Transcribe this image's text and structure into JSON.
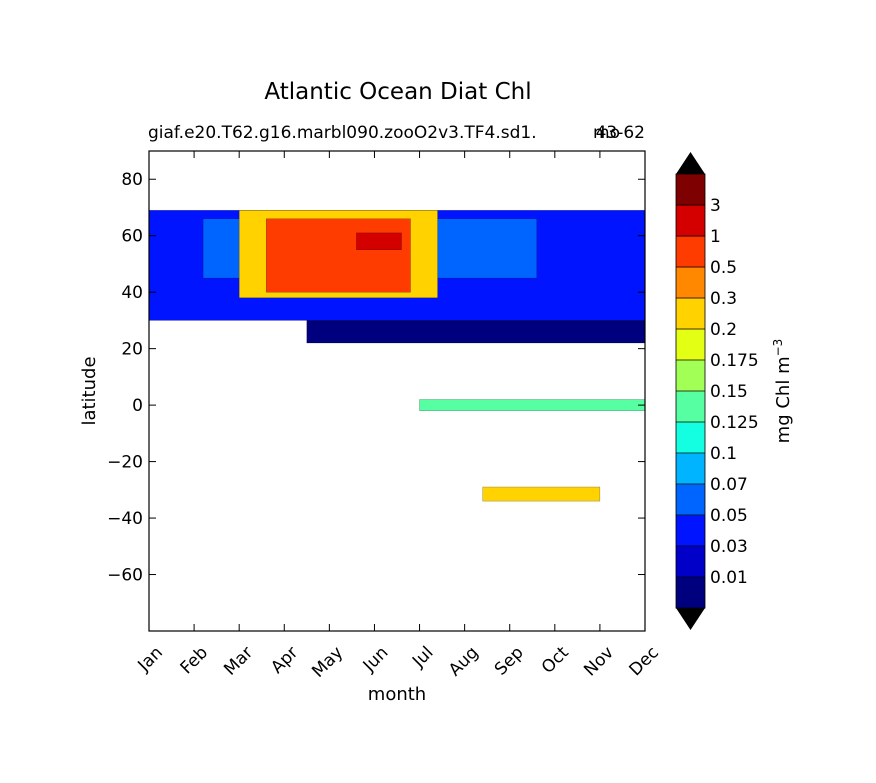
{
  "title": "Atlantic Ocean Diat Chl",
  "subtitle_left": "giaf.e20.T62.g16.marbl090.zooO2v3.TF4.sd1.",
  "subtitle_right": "43-62",
  "subtitle_overlap": "mo",
  "chart_data": {
    "type": "heatmap",
    "xlabel": "month",
    "ylabel": "latitude",
    "x": [
      "Jan",
      "Feb",
      "Mar",
      "Apr",
      "May",
      "Jun",
      "Jul",
      "Aug",
      "Sep",
      "Oct",
      "Nov",
      "Dec"
    ],
    "yticks": [
      80,
      60,
      40,
      20,
      0,
      -20,
      -40,
      -60
    ],
    "ylim": [
      -80,
      90
    ],
    "data_lat_range": [
      -34,
      69
    ],
    "colorbar": {
      "label": "mg Chl m",
      "label_sup": "−3",
      "levels": [
        "0.01",
        "0.03",
        "0.05",
        "0.07",
        "0.1",
        "0.125",
        "0.15",
        "0.175",
        "0.2",
        "0.3",
        "0.5",
        "1",
        "3"
      ],
      "colors": [
        "#00007f",
        "#0000c8",
        "#0014ff",
        "#0064ff",
        "#00b4ff",
        "#14ffe2",
        "#55ffa2",
        "#a2ff55",
        "#e2ff14",
        "#ffd200",
        "#ff8800",
        "#ff3c00",
        "#d40000",
        "#7f0000"
      ],
      "extend": "both"
    },
    "regions": [
      {
        "name": "north-atlantic-background",
        "lat": [
          30,
          69
        ],
        "months": [
          1,
          12
        ],
        "level": 2
      },
      {
        "name": "north-high-lat-band",
        "lat": [
          45,
          66
        ],
        "months": [
          2.2,
          9.6
        ],
        "level": 3
      },
      {
        "name": "north-bloom-core",
        "lat": [
          38,
          69
        ],
        "months": [
          3.0,
          7.4
        ],
        "level": 9
      },
      {
        "name": "north-bloom-peak",
        "lat": [
          40,
          66
        ],
        "months": [
          3.6,
          6.8
        ],
        "level": 11
      },
      {
        "name": "north-bloom-max",
        "lat": [
          55,
          61
        ],
        "months": [
          5.6,
          6.6
        ],
        "level": 12
      },
      {
        "name": "subtropical-gyre",
        "lat": [
          22,
          30
        ],
        "months": [
          4.5,
          12
        ],
        "level": 0
      },
      {
        "name": "equatorial-upwelling",
        "lat": [
          -2,
          2
        ],
        "months": [
          7,
          12
        ],
        "level": 6
      },
      {
        "name": "south-subtropical-bloom",
        "lat": [
          -34,
          -29
        ],
        "months": [
          8.4,
          11
        ],
        "level": 9
      }
    ]
  }
}
